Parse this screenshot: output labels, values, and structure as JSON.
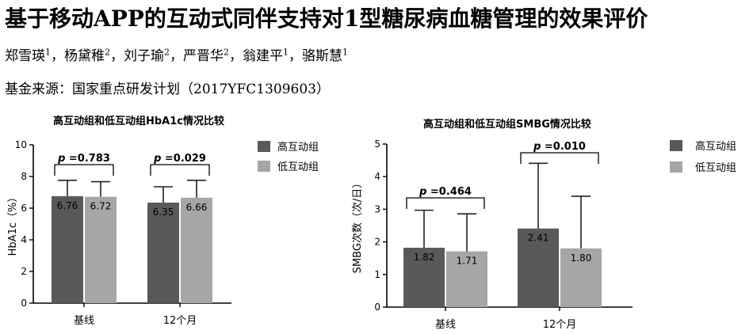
{
  "header": {
    "title": "基于移动APP的互动式同伴支持对1型糖尿病血糖管理的效果评价",
    "authors": [
      {
        "name": "郑雪瑛",
        "aff": "1"
      },
      {
        "name": "杨黛稚",
        "aff": "2"
      },
      {
        "name": "刘子瑜",
        "aff": "2"
      },
      {
        "name": "严晋华",
        "aff": "2"
      },
      {
        "name": "翁建平",
        "aff": "1"
      },
      {
        "name": "骆斯慧",
        "aff": "1"
      }
    ],
    "author_sep": "，",
    "funding": "基金来源：国家重点研发计划（2017YFC1309603）"
  },
  "chart_data": [
    {
      "type": "bar",
      "title": "高互动组和低互动组HbA1c情况比较",
      "xlabel": "",
      "ylabel": "HbA1c（%）",
      "categories": [
        "基线",
        "12个月"
      ],
      "series": [
        {
          "name": "高互动组",
          "values": [
            6.76,
            6.35
          ],
          "errors": [
            1.0,
            1.0
          ],
          "labels": [
            "6.76",
            "6.35"
          ],
          "color": "#595959"
        },
        {
          "name": "低互动组",
          "values": [
            6.72,
            6.66
          ],
          "errors": [
            0.95,
            1.1
          ],
          "labels": [
            "6.72",
            "6.66"
          ],
          "color": "#a6a6a6"
        }
      ],
      "ylim": [
        0,
        10
      ],
      "yticks": [
        "0",
        "2",
        "4",
        "6",
        "8",
        "10"
      ],
      "p_values": [
        "0.783",
        "0.029"
      ],
      "p_prefix": "p",
      "legend": "right"
    },
    {
      "type": "bar",
      "title": "高互动组和低互动组SMBG情况比较",
      "xlabel": "",
      "ylabel": "SMBG次数（次/日）",
      "categories": [
        "基线",
        "12个月"
      ],
      "series": [
        {
          "name": "高互动组",
          "values": [
            1.82,
            2.41
          ],
          "errors": [
            1.15,
            2.0
          ],
          "labels": [
            "1.82",
            "2.41"
          ],
          "color": "#595959"
        },
        {
          "name": "低互动组",
          "values": [
            1.71,
            1.8
          ],
          "errors": [
            1.15,
            1.6
          ],
          "labels": [
            "1.71",
            "1.80"
          ],
          "color": "#a6a6a6"
        }
      ],
      "ylim": [
        0,
        5
      ],
      "yticks": [
        "0",
        "1",
        "2",
        "3",
        "4",
        "5"
      ],
      "p_values": [
        "0.464",
        "0.010"
      ],
      "p_prefix": "p",
      "legend": "right"
    }
  ]
}
